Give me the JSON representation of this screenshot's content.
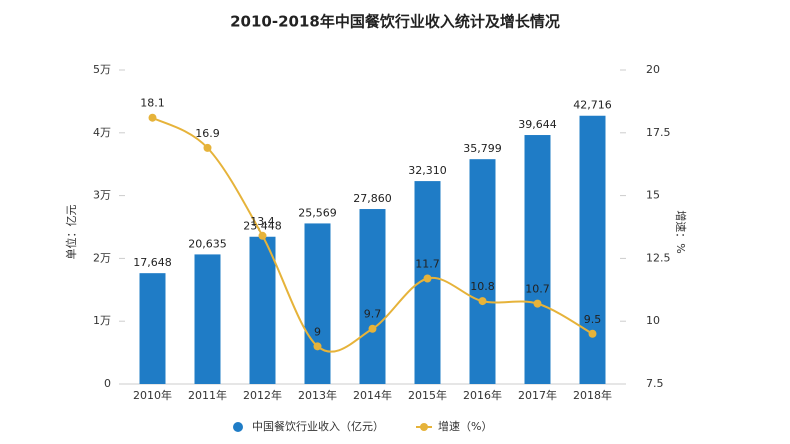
{
  "chart_data": {
    "type": "bar-line",
    "title": "2010-2018年中国餐饮行业收入统计及增长情况",
    "y_label": "单位：亿元",
    "y2_label": "增速：%",
    "categories": [
      "2010年",
      "2011年",
      "2012年",
      "2013年",
      "2014年",
      "2015年",
      "2016年",
      "2017年",
      "2018年"
    ],
    "series": [
      {
        "name": "中国餐饮行业收入（亿元）",
        "color": "#1f7cc6",
        "type": "bar",
        "axis": "y",
        "values": [
          17648,
          20635,
          23448,
          25569,
          27860,
          32310,
          35799,
          39644,
          42716
        ],
        "value_labels": [
          "17,648",
          "20,635",
          "23,448",
          "25,569",
          "27,860",
          "32,310",
          "35,799",
          "39,644",
          "42,716"
        ]
      },
      {
        "name": "增速（%）",
        "color": "#e6b33a",
        "type": "line",
        "axis": "y2",
        "values": [
          18.1,
          16.9,
          13.4,
          9,
          9.7,
          11.7,
          10.8,
          10.7,
          9.5
        ]
      }
    ],
    "ylim": [
      0,
      50000
    ],
    "yticks": [
      0,
      {
        "value": 10000,
        "label": "1万"
      },
      {
        "value": 20000,
        "label": "2万"
      },
      {
        "value": 30000,
        "label": "3万"
      },
      {
        "value": 40000,
        "label": "4万"
      },
      {
        "value": 50000,
        "label": "5万"
      }
    ],
    "y2lim": [
      7.5,
      20
    ],
    "y2ticks": [
      7.5,
      10,
      12.5,
      15,
      17.5,
      20
    ]
  }
}
